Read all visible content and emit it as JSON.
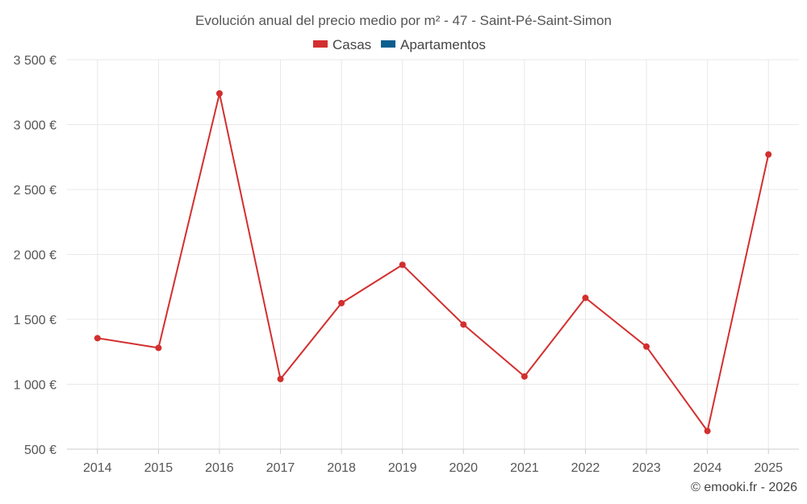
{
  "chart_data": {
    "type": "line",
    "title": "Evolución anual del precio medio por m² - 47 - Saint-Pé-Saint-Simon",
    "xlabel": "",
    "ylabel": "",
    "x": [
      "2014",
      "2015",
      "2016",
      "2017",
      "2018",
      "2019",
      "2020",
      "2021",
      "2022",
      "2023",
      "2024",
      "2025"
    ],
    "yticks": [
      "500 €",
      "1 000 €",
      "1 500 €",
      "2 000 €",
      "2 500 €",
      "3 000 €",
      "3 500 €"
    ],
    "ylim": [
      500,
      3500
    ],
    "grid": true,
    "legend_position": "top-center",
    "legend": [
      {
        "name": "Casas",
        "color": "#d32f2f"
      },
      {
        "name": "Apartamentos",
        "color": "#0b5d8f"
      }
    ],
    "series": [
      {
        "name": "Casas",
        "color": "#d32f2f",
        "values": [
          1355,
          1280,
          3240,
          1040,
          1625,
          1920,
          1460,
          1060,
          1665,
          1290,
          640,
          2770
        ]
      }
    ]
  },
  "credit": "© emooki.fr - 2026"
}
